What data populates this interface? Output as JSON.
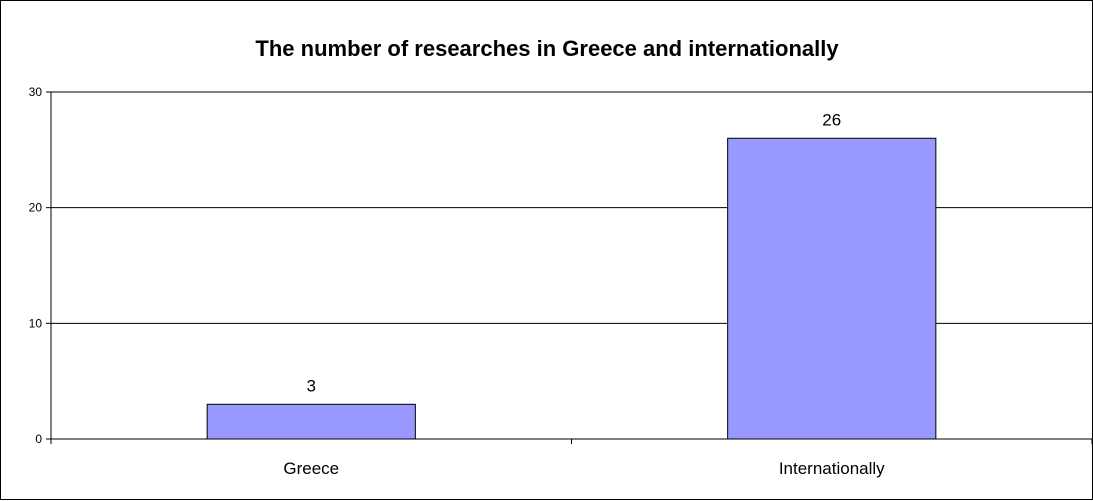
{
  "chart_data": {
    "type": "bar",
    "title": "The number of researches in Greece and internationally",
    "categories": [
      "Greece",
      "Internationally"
    ],
    "values": [
      3,
      26
    ],
    "data_labels": [
      "3",
      "26"
    ],
    "ylim": [
      0,
      30
    ],
    "yticks": [
      0,
      10,
      20,
      30
    ],
    "ytick_labels": [
      "0",
      "10",
      "20",
      "30"
    ],
    "xlabel": "",
    "ylabel": "",
    "grid": true,
    "legend": false,
    "colors": {
      "bar_fill": "#9999ff",
      "bar_stroke": "#000000",
      "gridline": "#000000",
      "background": "#ffffff"
    }
  }
}
